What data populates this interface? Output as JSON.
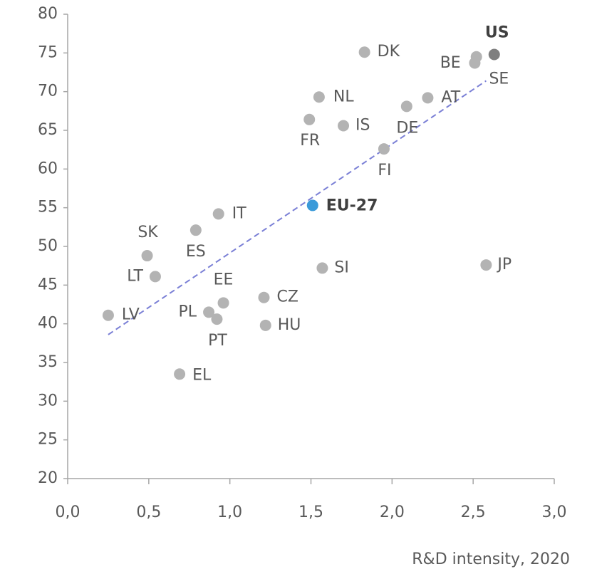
{
  "chart_data": {
    "type": "scatter",
    "xlabel": "R&D intensity, 2020",
    "xlim": [
      0,
      3
    ],
    "xticks": [
      {
        "value": 0,
        "label": "0,0"
      },
      {
        "value": 0.5,
        "label": "0,5"
      },
      {
        "value": 1,
        "label": "1,0"
      },
      {
        "value": 1.5,
        "label": "1,5"
      },
      {
        "value": 2,
        "label": "2,0"
      },
      {
        "value": 2.5,
        "label": "2,5"
      },
      {
        "value": 3,
        "label": "3,0"
      }
    ],
    "ylim": [
      20,
      80
    ],
    "yticks": [
      20,
      25,
      30,
      35,
      40,
      45,
      50,
      55,
      60,
      65,
      70,
      75,
      80
    ],
    "grid": false,
    "color": "#b3b3b3",
    "points": [
      {
        "label": "DK",
        "x": 1.83,
        "y": 75.1
      },
      {
        "label": "US",
        "x": 2.63,
        "y": 74.8,
        "color": "#7f7f7f",
        "bold": true
      },
      {
        "label": "BE",
        "x": 2.52,
        "y": 74.5
      },
      {
        "label": "SE",
        "x": 2.51,
        "y": 73.7
      },
      {
        "label": "AT",
        "x": 2.22,
        "y": 69.2
      },
      {
        "label": "DE",
        "x": 2.09,
        "y": 68.1
      },
      {
        "label": "NL",
        "x": 1.55,
        "y": 69.3
      },
      {
        "label": "FR",
        "x": 1.49,
        "y": 66.4
      },
      {
        "label": "IS",
        "x": 1.7,
        "y": 65.6
      },
      {
        "label": "FI",
        "x": 1.95,
        "y": 62.6
      },
      {
        "label": "EU-27",
        "x": 1.51,
        "y": 55.3,
        "color": "#3a9ad9",
        "bold": true
      },
      {
        "label": "IT",
        "x": 0.93,
        "y": 54.2
      },
      {
        "label": "ES",
        "x": 0.79,
        "y": 52.1
      },
      {
        "label": "SK",
        "x": 0.49,
        "y": 48.8
      },
      {
        "label": "LT",
        "x": 0.54,
        "y": 46.1
      },
      {
        "label": "SI",
        "x": 1.57,
        "y": 47.2
      },
      {
        "label": "JP",
        "x": 2.58,
        "y": 47.6
      },
      {
        "label": "EE",
        "x": 0.96,
        "y": 42.7
      },
      {
        "label": "CZ",
        "x": 1.21,
        "y": 43.4
      },
      {
        "label": "PL",
        "x": 0.87,
        "y": 41.5
      },
      {
        "label": "PT",
        "x": 0.92,
        "y": 40.6
      },
      {
        "label": "HU",
        "x": 1.22,
        "y": 39.8
      },
      {
        "label": "LV",
        "x": 0.25,
        "y": 41.1
      },
      {
        "label": "EL",
        "x": 0.69,
        "y": 33.5
      }
    ],
    "trendline": {
      "x": [
        0.25,
        2.58
      ],
      "y": [
        38.6,
        71.4
      ],
      "color": "#7b80d6",
      "dashed": true
    }
  }
}
